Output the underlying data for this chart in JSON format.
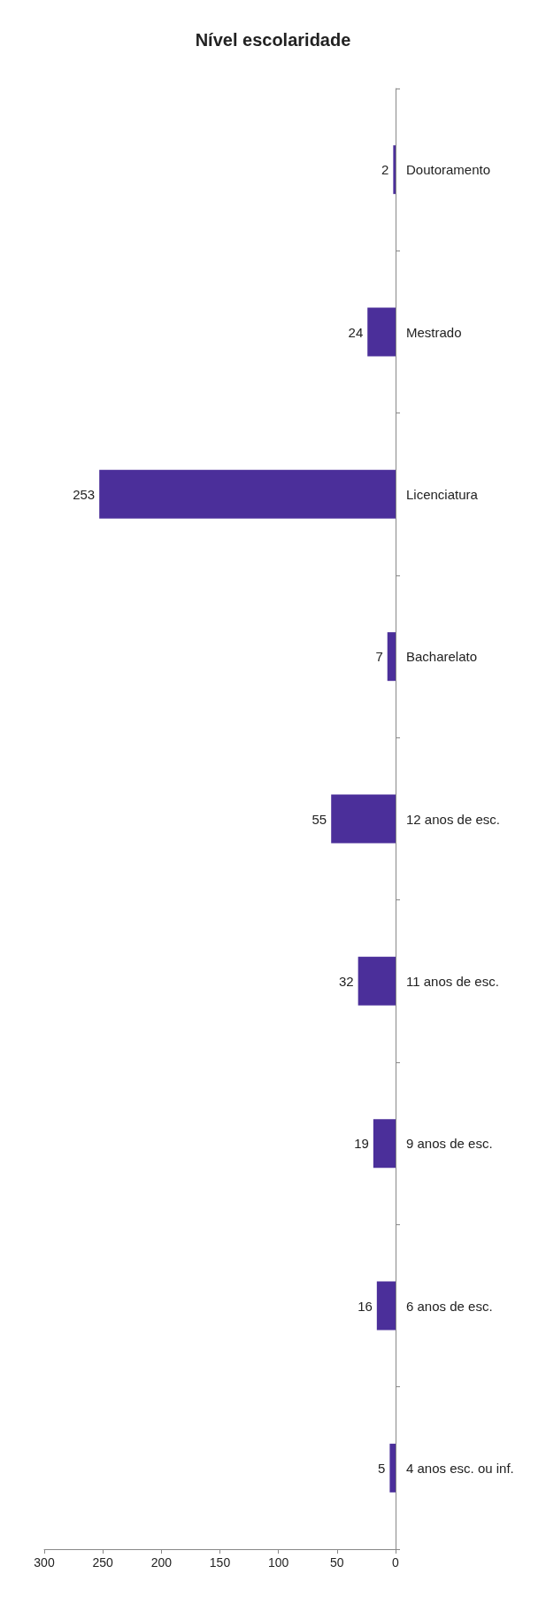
{
  "chart_data": {
    "type": "bar",
    "title": "Nível escolaridade",
    "orientation": "horizontal",
    "categories": [
      "Doutoramento",
      "Mestrado",
      "Licenciatura",
      "Bacharelato",
      "12 anos de esc.",
      "11 anos de esc.",
      "9 anos de esc.",
      "6 anos de esc.",
      "4 anos esc. ou inf."
    ],
    "values": [
      2,
      24,
      253,
      7,
      55,
      32,
      19,
      16,
      5
    ],
    "color": "#4b2f9a",
    "xlim": [
      300,
      0
    ],
    "xticks": [
      300,
      250,
      200,
      150,
      100,
      50,
      0
    ],
    "data_labels": true,
    "grid": false
  }
}
